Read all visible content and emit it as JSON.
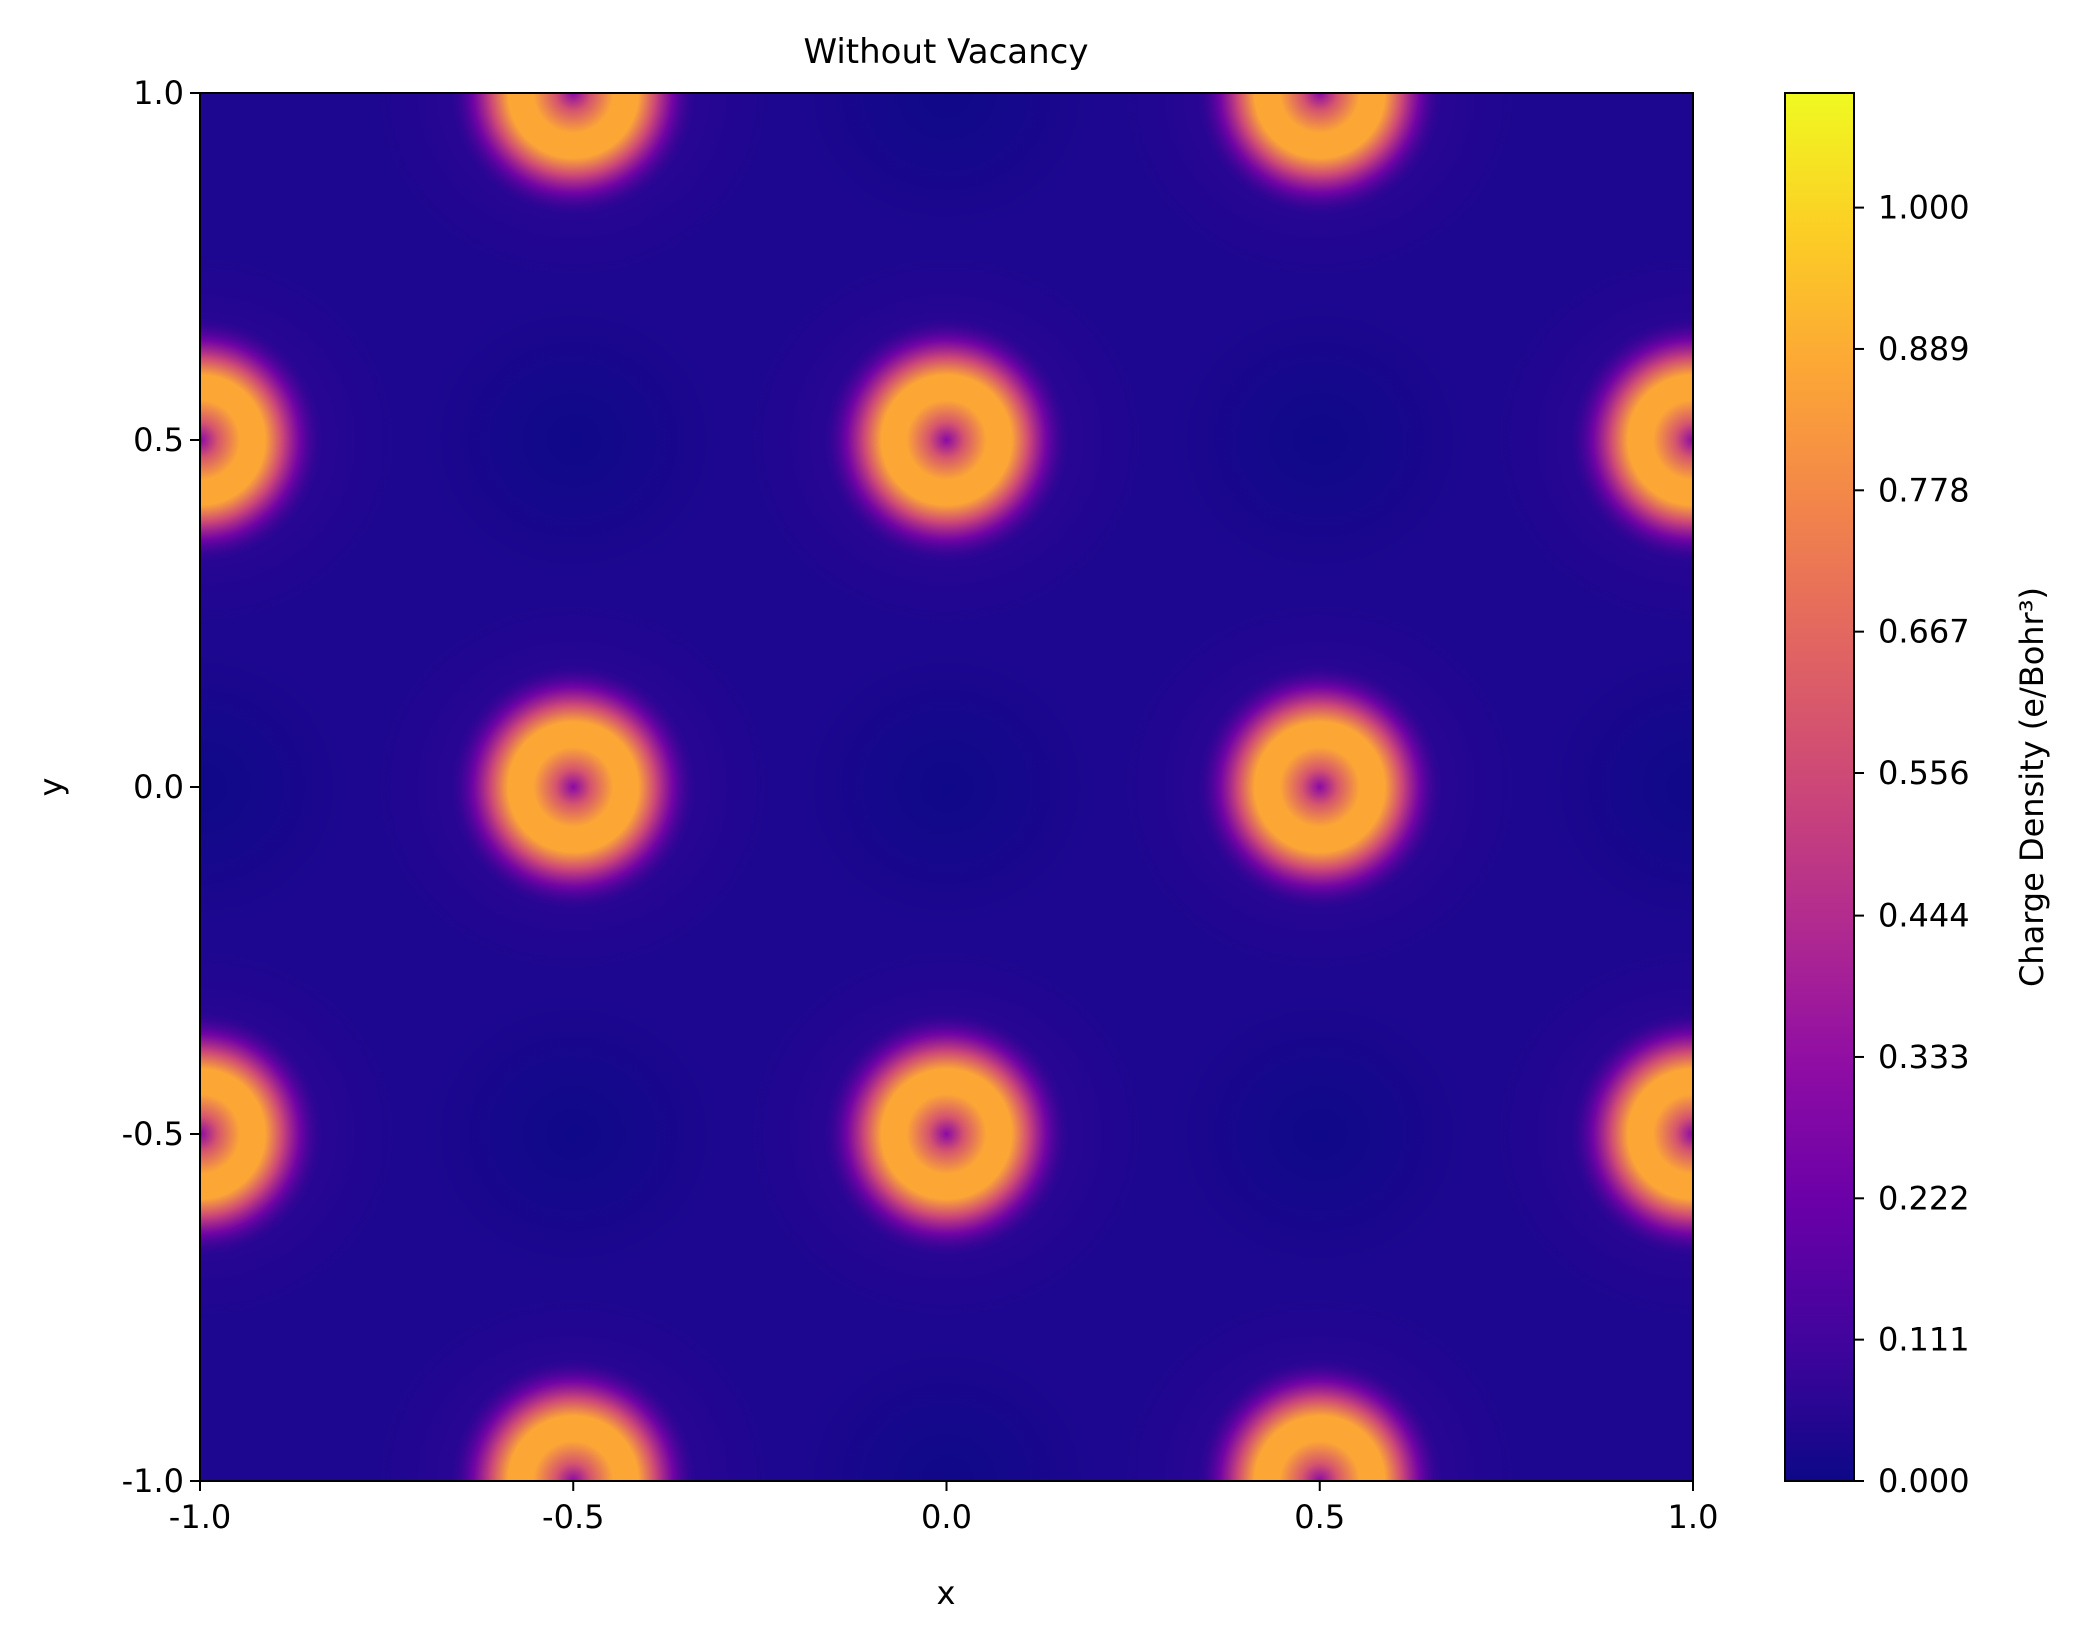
{
  "chart_data": {
    "type": "heatmap",
    "title": "Without Vacancy",
    "xlabel": "x",
    "ylabel": "y",
    "xlim": [
      -1.0,
      1.0
    ],
    "ylim": [
      -1.0,
      1.0
    ],
    "x_ticks": [
      {
        "value": -1.0,
        "label": "-1.0"
      },
      {
        "value": -0.5,
        "label": "-0.5"
      },
      {
        "value": 0.0,
        "label": "0.0"
      },
      {
        "value": 0.5,
        "label": "0.5"
      },
      {
        "value": 1.0,
        "label": "1.0"
      }
    ],
    "y_ticks": [
      {
        "value": -1.0,
        "label": "-1.0"
      },
      {
        "value": -0.5,
        "label": "-0.5"
      },
      {
        "value": 0.0,
        "label": "0.0"
      },
      {
        "value": 0.5,
        "label": "0.5"
      },
      {
        "value": 1.0,
        "label": "1.0"
      }
    ],
    "colormap": "plasma",
    "colorbar": {
      "label": "Charge Density (e/Bohr³)",
      "range": [
        0.0,
        1.09
      ],
      "ticks": [
        {
          "value": 0.0,
          "label": "0.000"
        },
        {
          "value": 0.111,
          "label": "0.111"
        },
        {
          "value": 0.222,
          "label": "0.222"
        },
        {
          "value": 0.333,
          "label": "0.333"
        },
        {
          "value": 0.444,
          "label": "0.444"
        },
        {
          "value": 0.556,
          "label": "0.556"
        },
        {
          "value": 0.667,
          "label": "0.667"
        },
        {
          "value": 0.778,
          "label": "0.778"
        },
        {
          "value": 0.889,
          "label": "0.889"
        },
        {
          "value": 1.0,
          "label": "1.000"
        }
      ]
    },
    "atom_sites": [
      {
        "x": -0.5,
        "y": 1.0
      },
      {
        "x": 0.5,
        "y": 1.0
      },
      {
        "x": -1.0,
        "y": 0.5
      },
      {
        "x": 0.0,
        "y": 0.5
      },
      {
        "x": 1.0,
        "y": 0.5
      },
      {
        "x": -0.5,
        "y": 0.0
      },
      {
        "x": 0.5,
        "y": 0.0
      },
      {
        "x": -1.0,
        "y": -0.5
      },
      {
        "x": 0.0,
        "y": -0.5
      },
      {
        "x": 1.0,
        "y": -0.5
      },
      {
        "x": -0.5,
        "y": -1.0
      },
      {
        "x": 0.5,
        "y": -1.0
      }
    ],
    "peak_density": 0.89,
    "background_density": 0.1
  }
}
